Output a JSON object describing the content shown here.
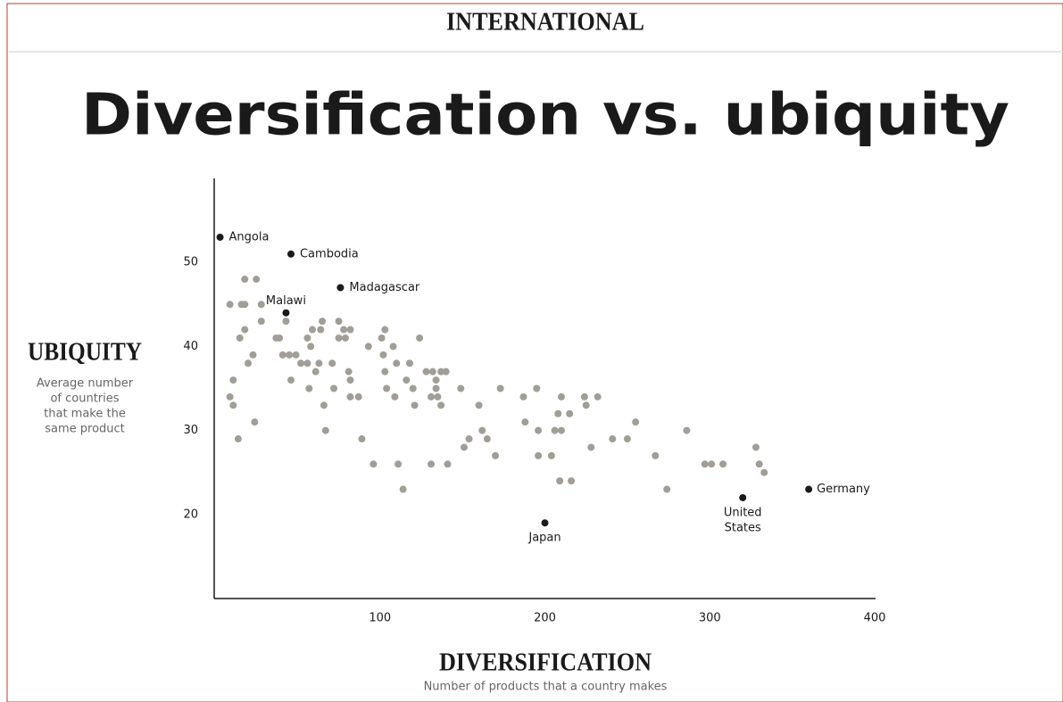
{
  "header": "INTERNATIONAL",
  "chart_data": {
    "type": "scatter",
    "title": "Diversification vs. ubiquity",
    "x_label": "DIVERSIFICATION",
    "x_sublabel": "Number of products that a country makes",
    "y_label": "UBIQUITY",
    "y_sublabel": [
      "Average number",
      "of countries",
      "that make the",
      "same product"
    ],
    "xlim": [
      0,
      400
    ],
    "ylim": [
      10,
      60
    ],
    "xticks": [
      100,
      200,
      300,
      400
    ],
    "yticks": [
      20,
      30,
      40,
      50
    ],
    "color": "#a19e97",
    "x": [
      9,
      16,
      18,
      18,
      25,
      28,
      18,
      15,
      20,
      23,
      28,
      11,
      9,
      11,
      14,
      24,
      37,
      39,
      43,
      41,
      45,
      49,
      46,
      52,
      56,
      57,
      56,
      59,
      58,
      61,
      63,
      64,
      65,
      66,
      67,
      71,
      72,
      75,
      75,
      78,
      79,
      81,
      82,
      82,
      82,
      87,
      89,
      93,
      96,
      101,
      103,
      102,
      103,
      104,
      108,
      109,
      110,
      111,
      114,
      116,
      118,
      120,
      121,
      124,
      128,
      132,
      131,
      131,
      134,
      134,
      135,
      137,
      140,
      137,
      141,
      149,
      151,
      154,
      160,
      162,
      165,
      170,
      173,
      187,
      188,
      195,
      196,
      196,
      204,
      206,
      208,
      209,
      210,
      210,
      215,
      216,
      224,
      225,
      228,
      232,
      241,
      250,
      255,
      267,
      274,
      286,
      297,
      301,
      308,
      328,
      330,
      333
    ],
    "y": [
      45,
      45,
      45,
      48,
      48,
      45,
      42,
      41,
      38,
      39,
      43,
      36,
      34,
      33,
      29,
      31,
      41,
      41,
      43,
      39,
      39,
      39,
      36,
      38,
      38,
      35,
      41,
      42,
      40,
      37,
      38,
      42,
      43,
      33,
      30,
      38,
      35,
      43,
      41,
      42,
      41,
      37,
      42,
      36,
      34,
      34,
      29,
      40,
      26,
      41,
      42,
      39,
      37,
      35,
      40,
      34,
      38,
      26,
      23,
      36,
      38,
      35,
      33,
      41,
      37,
      37,
      34,
      26,
      36,
      35,
      34,
      37,
      37,
      33,
      26,
      35,
      28,
      29,
      33,
      30,
      29,
      27,
      35,
      34,
      31,
      35,
      30,
      27,
      27,
      30,
      32,
      24,
      30,
      34,
      32,
      24,
      34,
      33,
      28,
      34,
      29,
      29,
      31,
      27,
      23,
      30,
      26,
      26,
      26,
      28,
      26,
      25
    ],
    "highlight": {
      "color": "#1a1a1a",
      "labels": [
        [
          "Angola"
        ],
        [
          "Cambodia"
        ],
        [
          "Madagascar"
        ],
        [
          "Malawi"
        ],
        [
          "Japan"
        ],
        [
          "United",
          "States"
        ],
        [
          "Germany"
        ]
      ],
      "x": [
        3,
        46,
        76,
        43,
        200,
        320,
        360
      ],
      "y": [
        53,
        51,
        47,
        44,
        19,
        22,
        23
      ]
    }
  }
}
